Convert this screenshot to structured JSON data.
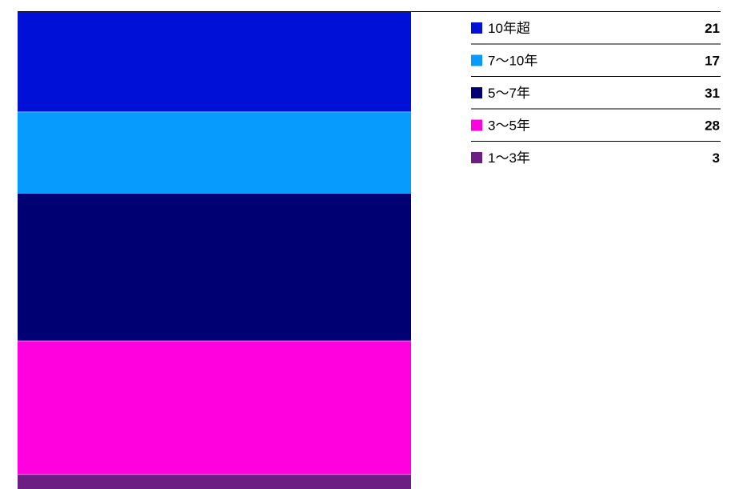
{
  "chart_data": {
    "type": "bar",
    "stacked": true,
    "orientation": "vertical",
    "title": "",
    "xlabel": "",
    "ylabel": "",
    "ylim": [
      0,
      100
    ],
    "grid": false,
    "legend_position": "right",
    "series": [
      {
        "name": "10年超",
        "value": 21,
        "value_label": "21",
        "color": "#0010d6"
      },
      {
        "name": "7〜10年",
        "value": 17,
        "value_label": "17",
        "color": "#069bfc"
      },
      {
        "name": "5〜7年",
        "value": 31,
        "value_label": "31",
        "color": "#000073"
      },
      {
        "name": "3〜5年",
        "value": 28,
        "value_label": "28",
        "color": "#ff00de"
      },
      {
        "name": "1〜3年",
        "value": 3,
        "value_label": "3",
        "color": "#6b1f82"
      }
    ]
  }
}
